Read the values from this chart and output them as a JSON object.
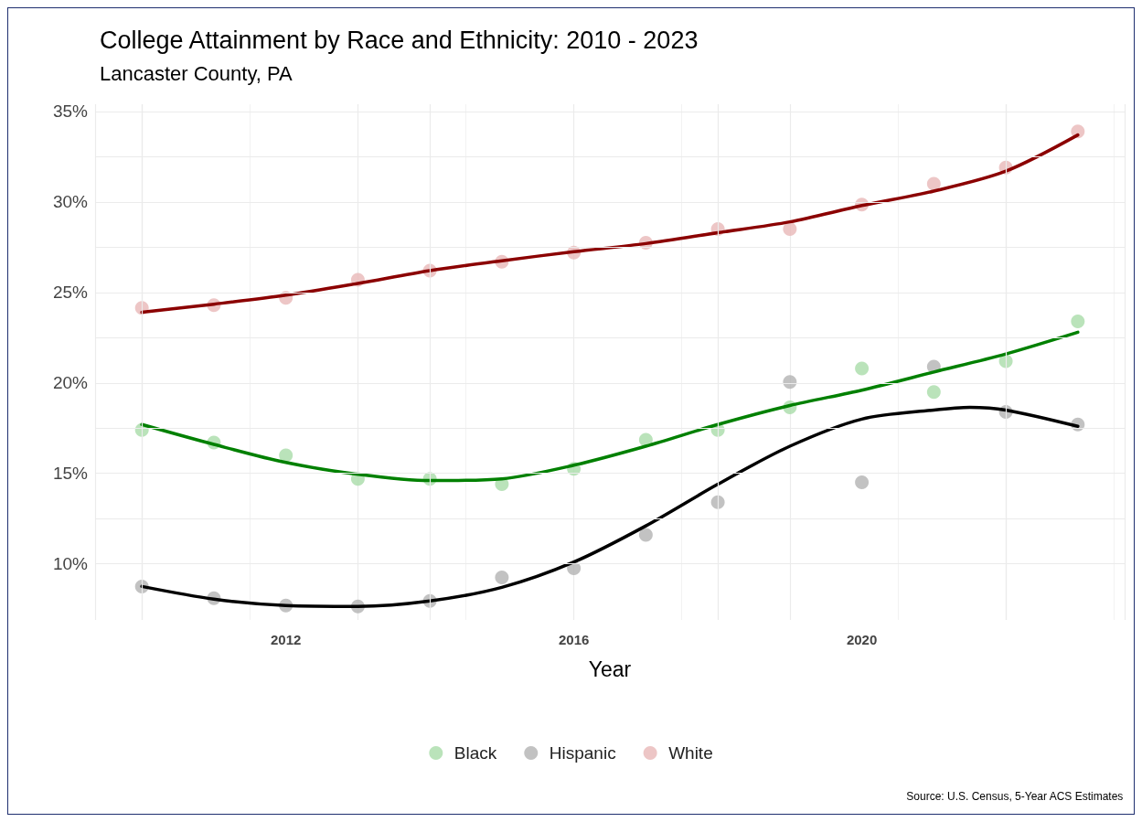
{
  "chart_data": {
    "type": "scatter",
    "title": "College Attainment by Race and Ethnicity: 2010 - 2023",
    "subtitle": "Lancaster County, PA",
    "xlabel": "Year",
    "annotations": [
      "Source: U.S. Census, 5-Year ACS Estimates"
    ],
    "x": [
      2010,
      2011,
      2012,
      2013,
      2014,
      2015,
      2016,
      2017,
      2018,
      2019,
      2020,
      2021,
      2022,
      2023
    ],
    "series": [
      {
        "name": "Black",
        "color": "#a9dca9",
        "values": [
          17.4,
          16.7,
          16.0,
          14.7,
          14.7,
          14.4,
          15.25,
          16.85,
          17.4,
          18.65,
          20.8,
          19.5,
          21.2,
          23.4
        ]
      },
      {
        "name": "Hispanic",
        "color": "#b3b3b3",
        "values": [
          8.75,
          8.1,
          7.7,
          7.65,
          7.95,
          9.25,
          9.75,
          11.6,
          13.4,
          20.05,
          14.5,
          20.9,
          18.4,
          17.7
        ]
      },
      {
        "name": "White",
        "color": "#e8b8b8",
        "values": [
          24.15,
          24.3,
          24.7,
          25.7,
          26.2,
          26.7,
          27.2,
          27.75,
          28.5,
          28.5,
          29.85,
          31.0,
          31.9,
          33.9
        ]
      },
      {
        "type": "line",
        "marker": "none",
        "color": "#008000",
        "x": [
          2010,
          2011,
          2012,
          2013,
          2014,
          2015,
          2016,
          2017,
          2018,
          2019,
          2020,
          2021,
          2022,
          2023
        ],
        "values": [
          17.7,
          16.6,
          15.6,
          14.95,
          14.6,
          14.7,
          15.45,
          16.5,
          17.7,
          18.75,
          19.6,
          20.6,
          21.6,
          22.8
        ]
      },
      {
        "type": "line",
        "marker": "none",
        "color": "#000000",
        "x": [
          2010,
          2011,
          2012,
          2013,
          2014,
          2015,
          2016,
          2017,
          2018,
          2019,
          2020,
          2021,
          2021.5,
          2022,
          2023
        ],
        "values": [
          8.75,
          8.05,
          7.7,
          7.65,
          7.95,
          8.7,
          10.1,
          12.1,
          14.4,
          16.5,
          18.0,
          18.5,
          18.65,
          18.5,
          17.6
        ]
      },
      {
        "type": "line",
        "marker": "none",
        "color": "#8b0000",
        "x": [
          2010,
          2011,
          2012,
          2013,
          2014,
          2015,
          2016,
          2017,
          2018,
          2019,
          2020,
          2021,
          2022,
          2023
        ],
        "values": [
          23.9,
          24.35,
          24.85,
          25.5,
          26.2,
          26.75,
          27.25,
          27.7,
          28.3,
          28.9,
          29.8,
          30.6,
          31.7,
          33.7
        ]
      }
    ],
    "xlim": [
      2009.35,
      2023.65
    ],
    "xticks": [
      2012,
      2016,
      2020
    ],
    "ylim": [
      6.9,
      35.4
    ],
    "yticks": [
      {
        "value": 10,
        "label": "10%"
      },
      {
        "value": 15,
        "label": "15%"
      },
      {
        "value": 20,
        "label": "20%"
      },
      {
        "value": 25,
        "label": "25%"
      },
      {
        "value": 30,
        "label": "30%"
      },
      {
        "value": 35,
        "label": "35%"
      }
    ],
    "grid": true,
    "legend": "bottom",
    "marker": "circle"
  }
}
